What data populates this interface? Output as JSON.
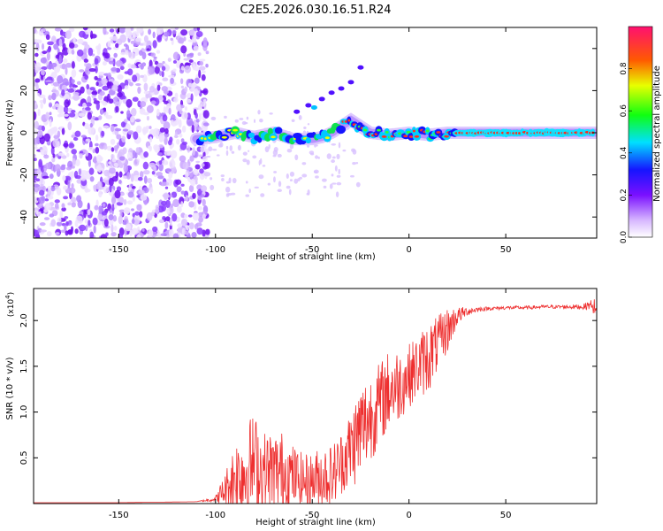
{
  "title": "C2E5.2026.030.16.51.R24",
  "colors": {
    "series": "#ee2f2f",
    "axis": "#000000",
    "background": "#ffffff"
  },
  "chart_data": [
    {
      "type": "heatmap",
      "name": "spectrogram",
      "title": "C2E5.2026.030.16.51.R24",
      "xlabel": "Height of straight line (km)",
      "ylabel": "Frequency (Hz)",
      "xlim": [
        -194,
        97
      ],
      "ylim": [
        -50,
        50
      ],
      "xticks": [
        -150,
        -100,
        -50,
        0,
        50
      ],
      "yticks": [
        -40,
        -20,
        0,
        20,
        40
      ],
      "ridge": {
        "x": [
          -110,
          -100,
          -90,
          -80,
          -70,
          -60,
          -50,
          -45,
          -40,
          -35,
          -30,
          -25,
          -20,
          -10,
          0,
          10,
          20,
          30,
          50,
          70,
          95
        ],
        "freq": [
          -3,
          -2,
          0,
          -2,
          0,
          -3,
          -3,
          -2,
          0,
          3,
          6,
          3,
          0,
          -1,
          0,
          -1,
          0,
          0,
          0,
          0,
          0
        ]
      },
      "colorbar": {
        "label": "Normalized spectral amplitude",
        "range": [
          0,
          1
        ],
        "ticks": [
          0.0,
          0.2,
          0.4,
          0.6,
          0.8
        ],
        "tick_labels": [
          "0.0",
          "0.2",
          "0.4",
          "0.6",
          "0.8"
        ]
      }
    },
    {
      "type": "line",
      "name": "snr",
      "xlabel": "Height of straight line (km)",
      "ylabel": "SNR (10 * v/v)",
      "scale_label": "(x10",
      "scale_exp": "4",
      "scale_close": ")",
      "xlim": [
        -194,
        97
      ],
      "ylim": [
        0,
        2.35
      ],
      "xticks": [
        -150,
        -100,
        -50,
        0,
        50
      ],
      "yticks": [
        0.5,
        1.0,
        1.5,
        2.0
      ],
      "ytick_labels": [
        "0.5",
        "1.0",
        "1.5",
        "2.0"
      ],
      "series": [
        {
          "name": "SNR",
          "color": "#ee2f2f",
          "x": [
            -194,
            -150,
            -110,
            -100,
            -95,
            -90,
            -85,
            -80,
            -75,
            -70,
            -65,
            -60,
            -55,
            -50,
            -45,
            -40,
            -35,
            -30,
            -25,
            -20,
            -15,
            -10,
            -5,
            0,
            5,
            10,
            15,
            20,
            25,
            30,
            35,
            40,
            50,
            60,
            70,
            80,
            90,
            95,
            97
          ],
          "values": [
            0.01,
            0.01,
            0.02,
            0.05,
            0.15,
            0.3,
            0.35,
            0.45,
            0.35,
            0.35,
            0.35,
            0.3,
            0.25,
            0.25,
            0.3,
            0.3,
            0.45,
            0.6,
            0.8,
            0.95,
            1.1,
            1.25,
            1.3,
            1.4,
            1.5,
            1.6,
            1.75,
            1.9,
            2.05,
            2.1,
            2.12,
            2.13,
            2.14,
            2.14,
            2.15,
            2.15,
            2.15,
            2.18,
            2.0
          ],
          "spread": [
            0,
            0,
            0,
            0.03,
            0.2,
            0.4,
            0.55,
            0.55,
            0.45,
            0.45,
            0.45,
            0.35,
            0.3,
            0.3,
            0.35,
            0.35,
            0.35,
            0.45,
            0.55,
            0.5,
            0.45,
            0.45,
            0.4,
            0.35,
            0.35,
            0.4,
            0.3,
            0.25,
            0.1,
            0.05,
            0.03,
            0.02,
            0.02,
            0.02,
            0.02,
            0.02,
            0.03,
            0.06,
            0.25
          ]
        }
      ]
    }
  ]
}
